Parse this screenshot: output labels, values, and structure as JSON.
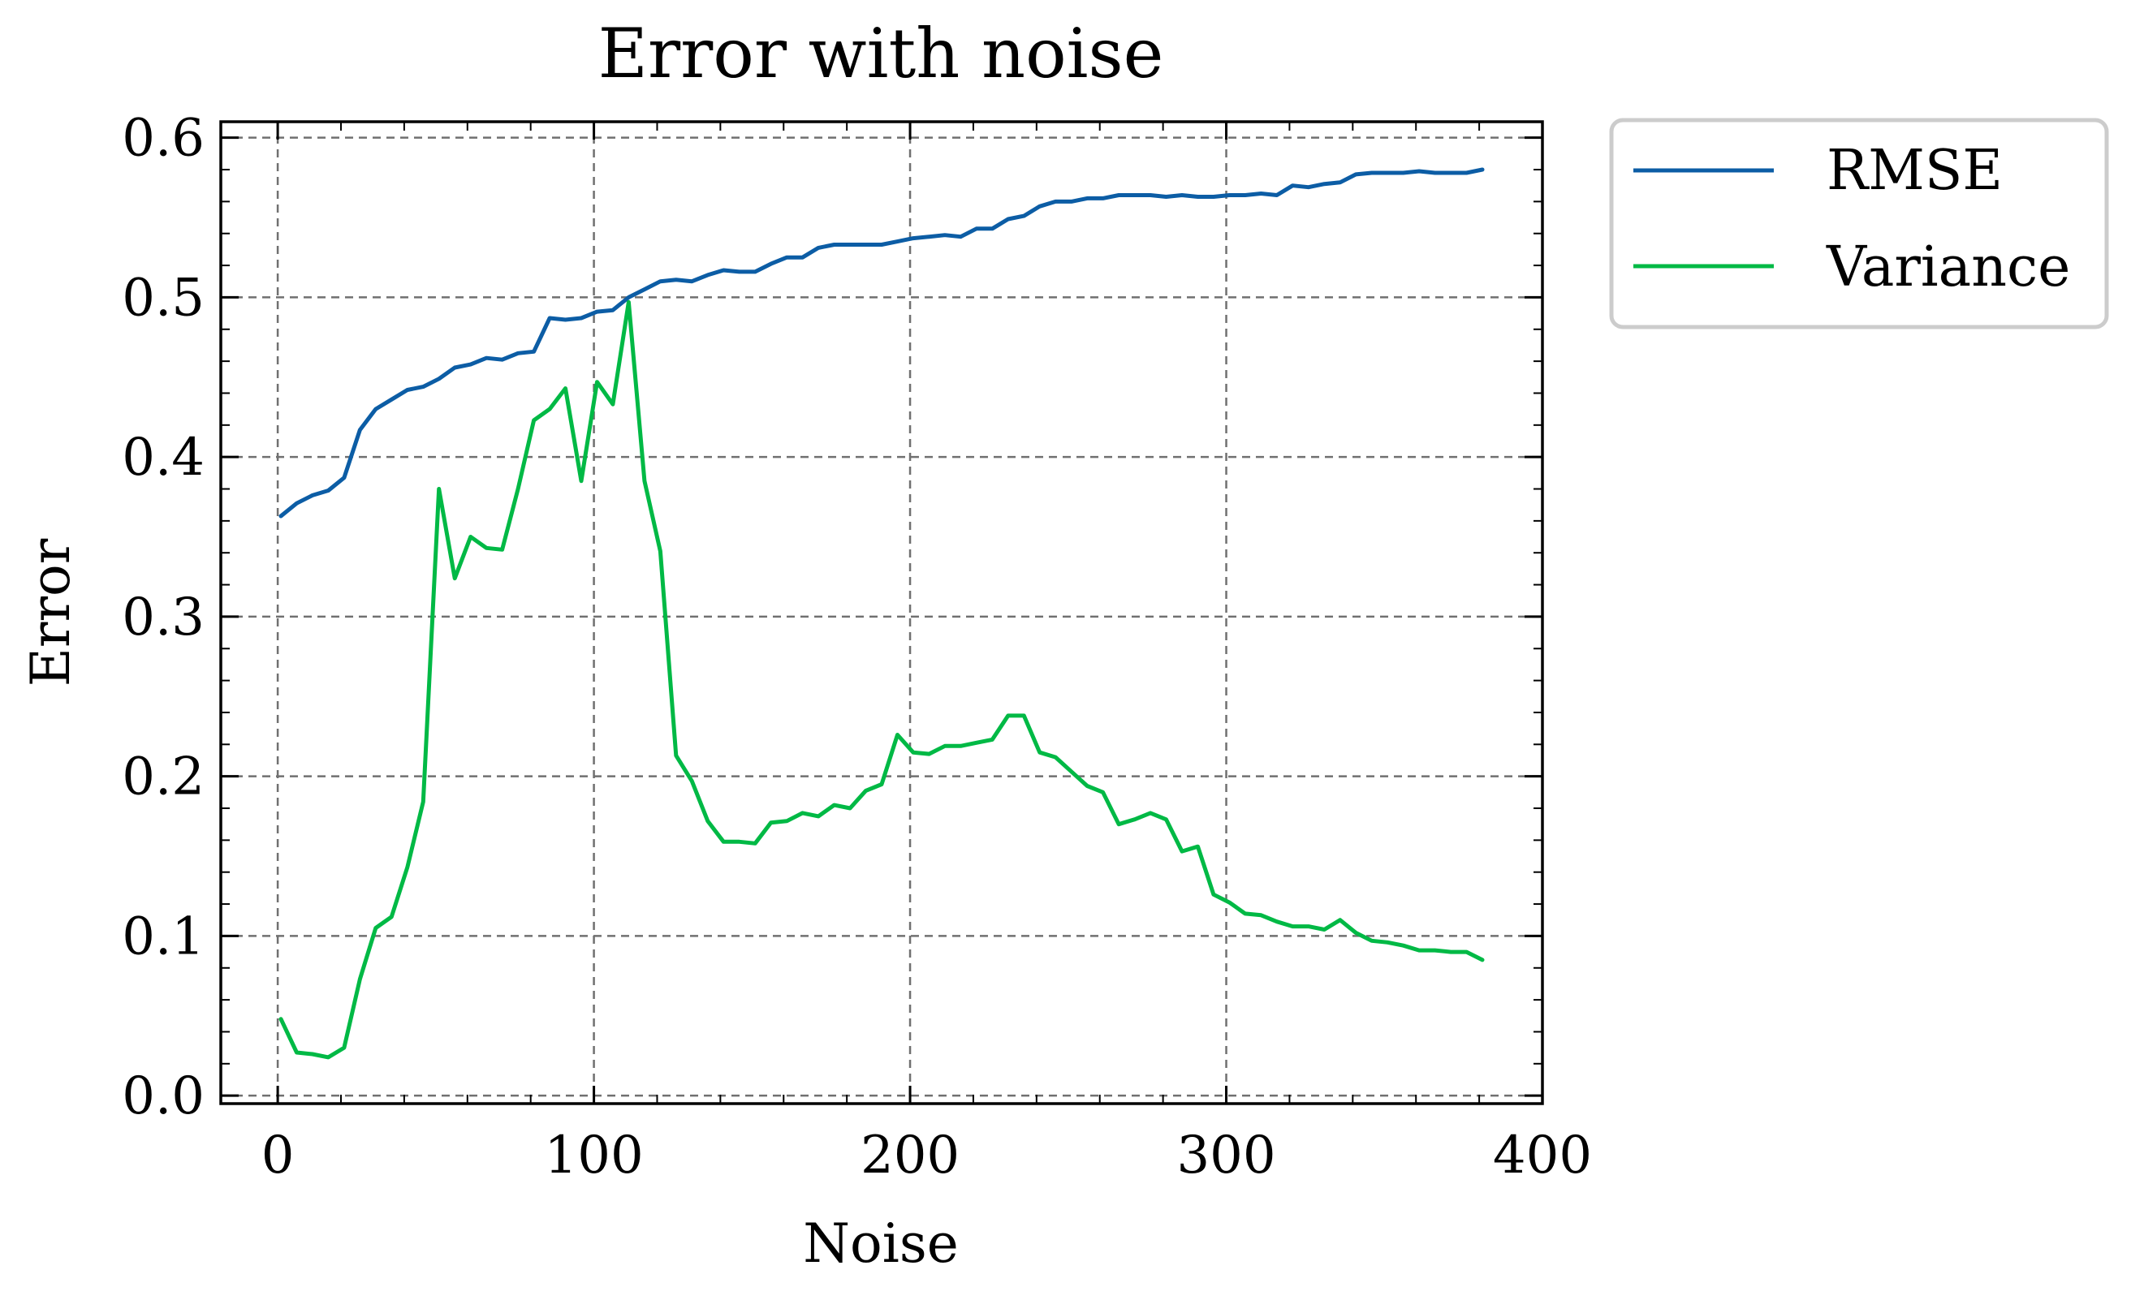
{
  "chart_data": {
    "type": "line",
    "title": "Error with noise",
    "xlabel": "Noise",
    "ylabel": "Error",
    "xlim": [
      -18,
      400
    ],
    "ylim": [
      -0.005,
      0.61
    ],
    "xticks": [
      0,
      100,
      200,
      300,
      400
    ],
    "xtick_labels": [
      "0",
      "100",
      "200",
      "300",
      "400"
    ],
    "yticks": [
      0.0,
      0.1,
      0.2,
      0.3,
      0.4,
      0.5,
      0.6
    ],
    "ytick_labels": [
      "0.0",
      "0.1",
      "0.2",
      "0.3",
      "0.4",
      "0.5",
      "0.6"
    ],
    "grid": true,
    "legend_position": "outside-right-top",
    "x": [
      1,
      6,
      11,
      16,
      21,
      26,
      31,
      36,
      41,
      46,
      51,
      56,
      61,
      66,
      71,
      76,
      81,
      86,
      91,
      96,
      101,
      106,
      111,
      116,
      121,
      126,
      131,
      136,
      141,
      146,
      151,
      156,
      161,
      166,
      171,
      176,
      181,
      186,
      191,
      196,
      201,
      206,
      211,
      216,
      221,
      226,
      231,
      236,
      241,
      246,
      251,
      256,
      261,
      266,
      271,
      276,
      281,
      286,
      291,
      296,
      301,
      306,
      311,
      316,
      321,
      326,
      331,
      336,
      341,
      346,
      351,
      356,
      361,
      366,
      371,
      376,
      381
    ],
    "series": [
      {
        "name": "RMSE",
        "color": "#0C5DA5",
        "values": [
          0.363,
          0.371,
          0.376,
          0.379,
          0.387,
          0.417,
          0.43,
          0.436,
          0.442,
          0.444,
          0.449,
          0.456,
          0.458,
          0.462,
          0.461,
          0.465,
          0.466,
          0.487,
          0.486,
          0.487,
          0.491,
          0.492,
          0.5,
          0.505,
          0.51,
          0.511,
          0.51,
          0.514,
          0.517,
          0.516,
          0.516,
          0.521,
          0.525,
          0.525,
          0.531,
          0.533,
          0.533,
          0.533,
          0.533,
          0.535,
          0.537,
          0.538,
          0.539,
          0.538,
          0.543,
          0.543,
          0.549,
          0.551,
          0.557,
          0.56,
          0.56,
          0.562,
          0.562,
          0.564,
          0.564,
          0.564,
          0.563,
          0.564,
          0.563,
          0.563,
          0.564,
          0.564,
          0.565,
          0.564,
          0.57,
          0.569,
          0.571,
          0.572,
          0.577,
          0.578,
          0.578,
          0.578,
          0.579,
          0.578,
          0.578,
          0.578,
          0.58
        ]
      },
      {
        "name": "Variance",
        "color": "#00B945",
        "values": [
          0.048,
          0.027,
          0.026,
          0.024,
          0.03,
          0.073,
          0.105,
          0.112,
          0.143,
          0.184,
          0.38,
          0.324,
          0.35,
          0.343,
          0.342,
          0.38,
          0.423,
          0.43,
          0.443,
          0.385,
          0.447,
          0.433,
          0.497,
          0.385,
          0.341,
          0.213,
          0.197,
          0.172,
          0.159,
          0.159,
          0.158,
          0.171,
          0.172,
          0.177,
          0.175,
          0.182,
          0.18,
          0.191,
          0.195,
          0.226,
          0.215,
          0.214,
          0.219,
          0.219,
          0.221,
          0.223,
          0.238,
          0.238,
          0.215,
          0.212,
          0.203,
          0.194,
          0.19,
          0.17,
          0.173,
          0.177,
          0.173,
          0.153,
          0.156,
          0.126,
          0.121,
          0.114,
          0.113,
          0.109,
          0.106,
          0.106,
          0.104,
          0.11,
          0.102,
          0.097,
          0.096,
          0.094,
          0.091,
          0.091,
          0.09,
          0.09,
          0.085
        ]
      }
    ]
  }
}
